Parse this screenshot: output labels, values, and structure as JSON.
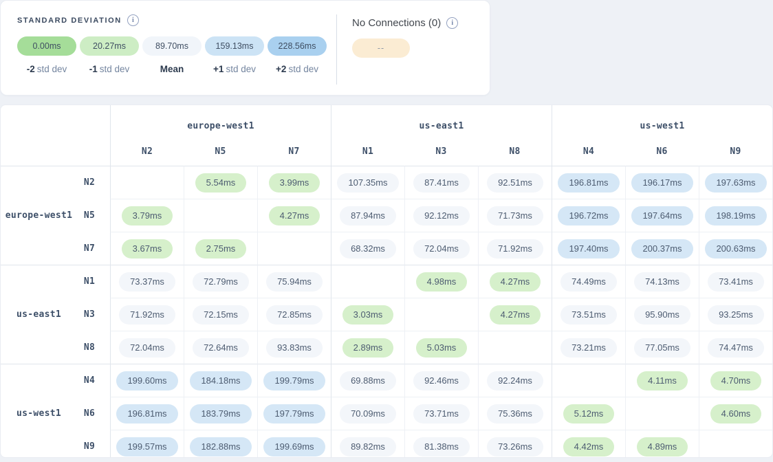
{
  "colors": {
    "green": "#d6f0cb",
    "gray": "#f3f6fa",
    "blue": "#d5e7f6",
    "legend_minus2": "#a5dd99",
    "legend_minus1": "#cdedc4",
    "legend_mean": "#f1f5fa",
    "legend_plus1": "#cce3f5",
    "legend_plus2": "#a9d0ef",
    "no_connections_chip": "#fbecd3"
  },
  "legend": {
    "title": "STANDARD DEVIATION",
    "info_icon": "info-icon",
    "items": [
      {
        "value": "0.00ms",
        "label_bold": "-2",
        "label_rest": "std dev",
        "color_key": "legend_minus2"
      },
      {
        "value": "20.27ms",
        "label_bold": "-1",
        "label_rest": "std dev",
        "color_key": "legend_minus1"
      },
      {
        "value": "89.70ms",
        "label_bold": "Mean",
        "label_rest": "",
        "color_key": "legend_mean"
      },
      {
        "value": "159.13ms",
        "label_bold": "+1",
        "label_rest": "std dev",
        "color_key": "legend_plus1"
      },
      {
        "value": "228.56ms",
        "label_bold": "+2",
        "label_rest": "std dev",
        "color_key": "legend_plus2"
      }
    ]
  },
  "no_connections": {
    "title": "No Connections (0)",
    "chip_label": "--"
  },
  "matrix": {
    "column_groups": [
      {
        "label": "europe-west1",
        "nodes": [
          "N2",
          "N5",
          "N7"
        ]
      },
      {
        "label": "us-east1",
        "nodes": [
          "N1",
          "N3",
          "N8"
        ]
      },
      {
        "label": "us-west1",
        "nodes": [
          "N4",
          "N6",
          "N9"
        ]
      }
    ],
    "row_groups": [
      {
        "label": "europe-west1",
        "rows": [
          {
            "node": "N2",
            "cells": [
              null,
              {
                "v": "5.54ms",
                "tone": "green"
              },
              {
                "v": "3.99ms",
                "tone": "green"
              },
              {
                "v": "107.35ms",
                "tone": "gray"
              },
              {
                "v": "87.41ms",
                "tone": "gray"
              },
              {
                "v": "92.51ms",
                "tone": "gray"
              },
              {
                "v": "196.81ms",
                "tone": "blue"
              },
              {
                "v": "196.17ms",
                "tone": "blue"
              },
              {
                "v": "197.63ms",
                "tone": "blue"
              }
            ]
          },
          {
            "node": "N5",
            "cells": [
              {
                "v": "3.79ms",
                "tone": "green"
              },
              null,
              {
                "v": "4.27ms",
                "tone": "green"
              },
              {
                "v": "87.94ms",
                "tone": "gray"
              },
              {
                "v": "92.12ms",
                "tone": "gray"
              },
              {
                "v": "71.73ms",
                "tone": "gray"
              },
              {
                "v": "196.72ms",
                "tone": "blue"
              },
              {
                "v": "197.64ms",
                "tone": "blue"
              },
              {
                "v": "198.19ms",
                "tone": "blue"
              }
            ]
          },
          {
            "node": "N7",
            "cells": [
              {
                "v": "3.67ms",
                "tone": "green"
              },
              {
                "v": "2.75ms",
                "tone": "green"
              },
              null,
              {
                "v": "68.32ms",
                "tone": "gray"
              },
              {
                "v": "72.04ms",
                "tone": "gray"
              },
              {
                "v": "71.92ms",
                "tone": "gray"
              },
              {
                "v": "197.40ms",
                "tone": "blue"
              },
              {
                "v": "200.37ms",
                "tone": "blue"
              },
              {
                "v": "200.63ms",
                "tone": "blue"
              }
            ]
          }
        ]
      },
      {
        "label": "us-east1",
        "rows": [
          {
            "node": "N1",
            "cells": [
              {
                "v": "73.37ms",
                "tone": "gray"
              },
              {
                "v": "72.79ms",
                "tone": "gray"
              },
              {
                "v": "75.94ms",
                "tone": "gray"
              },
              null,
              {
                "v": "4.98ms",
                "tone": "green"
              },
              {
                "v": "4.27ms",
                "tone": "green"
              },
              {
                "v": "74.49ms",
                "tone": "gray"
              },
              {
                "v": "74.13ms",
                "tone": "gray"
              },
              {
                "v": "73.41ms",
                "tone": "gray"
              }
            ]
          },
          {
            "node": "N3",
            "cells": [
              {
                "v": "71.92ms",
                "tone": "gray"
              },
              {
                "v": "72.15ms",
                "tone": "gray"
              },
              {
                "v": "72.85ms",
                "tone": "gray"
              },
              {
                "v": "3.03ms",
                "tone": "green"
              },
              null,
              {
                "v": "4.27ms",
                "tone": "green"
              },
              {
                "v": "73.51ms",
                "tone": "gray"
              },
              {
                "v": "95.90ms",
                "tone": "gray"
              },
              {
                "v": "93.25ms",
                "tone": "gray"
              }
            ]
          },
          {
            "node": "N8",
            "cells": [
              {
                "v": "72.04ms",
                "tone": "gray"
              },
              {
                "v": "72.64ms",
                "tone": "gray"
              },
              {
                "v": "93.83ms",
                "tone": "gray"
              },
              {
                "v": "2.89ms",
                "tone": "green"
              },
              {
                "v": "5.03ms",
                "tone": "green"
              },
              null,
              {
                "v": "73.21ms",
                "tone": "gray"
              },
              {
                "v": "77.05ms",
                "tone": "gray"
              },
              {
                "v": "74.47ms",
                "tone": "gray"
              }
            ]
          }
        ]
      },
      {
        "label": "us-west1",
        "rows": [
          {
            "node": "N4",
            "cells": [
              {
                "v": "199.60ms",
                "tone": "blue"
              },
              {
                "v": "184.18ms",
                "tone": "blue"
              },
              {
                "v": "199.79ms",
                "tone": "blue"
              },
              {
                "v": "69.88ms",
                "tone": "gray"
              },
              {
                "v": "92.46ms",
                "tone": "gray"
              },
              {
                "v": "92.24ms",
                "tone": "gray"
              },
              null,
              {
                "v": "4.11ms",
                "tone": "green"
              },
              {
                "v": "4.70ms",
                "tone": "green"
              }
            ]
          },
          {
            "node": "N6",
            "cells": [
              {
                "v": "196.81ms",
                "tone": "blue"
              },
              {
                "v": "183.79ms",
                "tone": "blue"
              },
              {
                "v": "197.79ms",
                "tone": "blue"
              },
              {
                "v": "70.09ms",
                "tone": "gray"
              },
              {
                "v": "73.71ms",
                "tone": "gray"
              },
              {
                "v": "75.36ms",
                "tone": "gray"
              },
              {
                "v": "5.12ms",
                "tone": "green"
              },
              null,
              {
                "v": "4.60ms",
                "tone": "green"
              }
            ]
          },
          {
            "node": "N9",
            "cells": [
              {
                "v": "199.57ms",
                "tone": "blue"
              },
              {
                "v": "182.88ms",
                "tone": "blue"
              },
              {
                "v": "199.69ms",
                "tone": "blue"
              },
              {
                "v": "89.82ms",
                "tone": "gray"
              },
              {
                "v": "81.38ms",
                "tone": "gray"
              },
              {
                "v": "73.26ms",
                "tone": "gray"
              },
              {
                "v": "4.42ms",
                "tone": "green"
              },
              {
                "v": "4.89ms",
                "tone": "green"
              },
              null
            ]
          }
        ]
      }
    ]
  }
}
